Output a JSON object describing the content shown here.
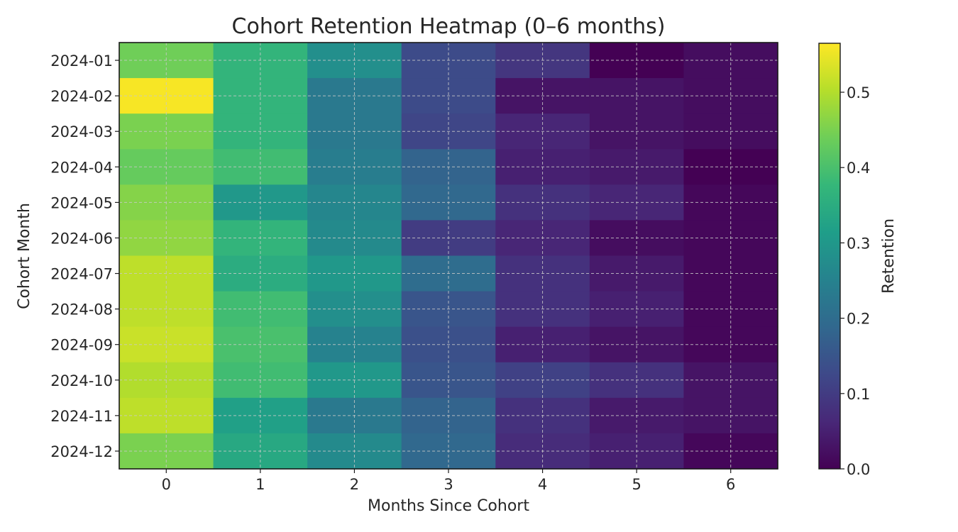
{
  "chart_data": {
    "type": "heatmap",
    "title": "Cohort Retention Heatmap (0–6 months)",
    "xlabel": "Months Since Cohort",
    "ylabel": "Cohort Month",
    "x_categories": [
      "0",
      "1",
      "2",
      "3",
      "4",
      "5",
      "6"
    ],
    "y_categories": [
      "2024-01",
      "2024-02",
      "2024-03",
      "2024-04",
      "2024-05",
      "2024-06",
      "2024-07",
      "2024-08",
      "2024-09",
      "2024-10",
      "2024-11",
      "2024-12"
    ],
    "values": [
      [
        0.44,
        0.37,
        0.28,
        0.13,
        0.09,
        0.0,
        0.02
      ],
      [
        0.56,
        0.37,
        0.23,
        0.13,
        0.03,
        0.03,
        0.02
      ],
      [
        0.45,
        0.37,
        0.23,
        0.12,
        0.06,
        0.03,
        0.02
      ],
      [
        0.43,
        0.39,
        0.24,
        0.18,
        0.05,
        0.04,
        0.0
      ],
      [
        0.46,
        0.3,
        0.26,
        0.19,
        0.08,
        0.06,
        0.01
      ],
      [
        0.47,
        0.37,
        0.27,
        0.1,
        0.06,
        0.02,
        0.01
      ],
      [
        0.51,
        0.35,
        0.3,
        0.2,
        0.08,
        0.04,
        0.01
      ],
      [
        0.51,
        0.39,
        0.28,
        0.15,
        0.08,
        0.05,
        0.01
      ],
      [
        0.52,
        0.4,
        0.25,
        0.14,
        0.05,
        0.03,
        0.01
      ],
      [
        0.5,
        0.39,
        0.3,
        0.15,
        0.11,
        0.08,
        0.03
      ],
      [
        0.51,
        0.32,
        0.23,
        0.18,
        0.08,
        0.04,
        0.03
      ],
      [
        0.45,
        0.34,
        0.27,
        0.19,
        0.07,
        0.05,
        0.01
      ]
    ],
    "colorbar": {
      "label": "Retention",
      "min": 0,
      "max": 0.565,
      "ticks": [
        0.0,
        0.1,
        0.2,
        0.3,
        0.4,
        0.5
      ],
      "tick_labels": [
        "0.0",
        "0.1",
        "0.2",
        "0.3",
        "0.4",
        "0.5"
      ],
      "colormap": "viridis"
    },
    "grid": true,
    "colors": {
      "viridis": [
        "#440154",
        "#482878",
        "#3e4989",
        "#31688e",
        "#26828e",
        "#1f9e89",
        "#35b779",
        "#6ece58",
        "#b5de2b",
        "#fde725"
      ]
    }
  }
}
